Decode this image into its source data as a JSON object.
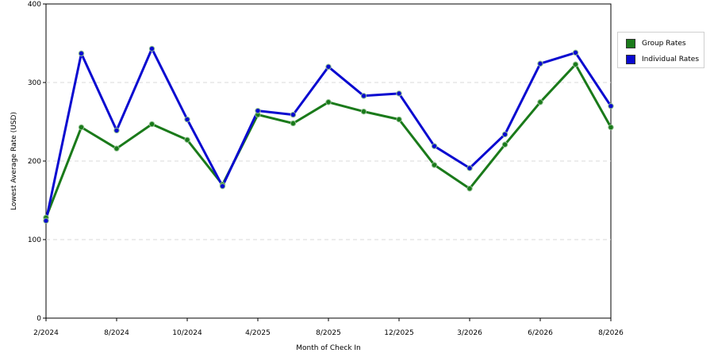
{
  "chart_data": {
    "type": "line",
    "title": "",
    "xlabel": "Month of Check In",
    "ylabel": "Lowest Average Rate (USD)",
    "ylim": [
      0,
      400
    ],
    "yticks": [
      0,
      100,
      200,
      300,
      400
    ],
    "grid": true,
    "legend_position": "right",
    "x_tick_labels": [
      "2/2024",
      "8/2024",
      "10/2024",
      "4/2025",
      "8/2025",
      "12/2025",
      "3/2026",
      "6/2026",
      "8/2026"
    ],
    "series": [
      {
        "name": "Group Rates",
        "color": "#1a7a1a",
        "values": [
          128,
          243,
          216,
          247,
          227,
          170,
          259,
          248,
          275,
          263,
          253,
          195,
          165,
          221,
          275,
          323,
          243
        ]
      },
      {
        "name": "Individual Rates",
        "color": "#0a0ad0",
        "values": [
          124,
          337,
          239,
          343,
          253,
          168,
          264,
          259,
          320,
          283,
          286,
          219,
          191,
          234,
          324,
          338,
          270
        ]
      }
    ]
  }
}
